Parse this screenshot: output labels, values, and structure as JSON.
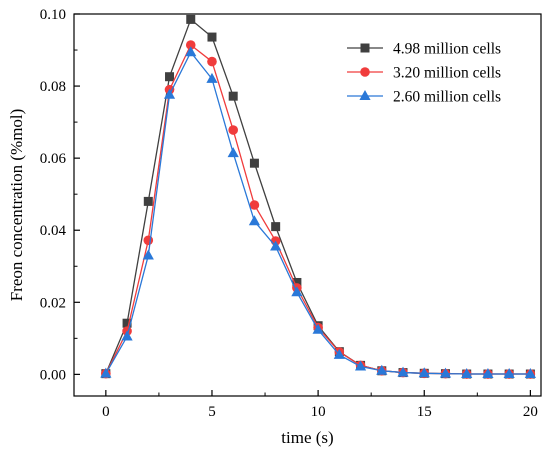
{
  "chart_data": {
    "type": "line",
    "title": "",
    "xlabel": "time (s)",
    "ylabel": "Freon concentration (%mol)",
    "xlim": [
      -1.5,
      20.5
    ],
    "ylim": [
      -0.006,
      0.1
    ],
    "x_ticks": [
      0,
      5,
      10,
      15,
      20
    ],
    "x_tick_labels": [
      "0",
      "5",
      "10",
      "15",
      "20"
    ],
    "y_ticks": [
      0,
      0.02,
      0.04,
      0.06,
      0.08,
      0.1
    ],
    "y_tick_labels": [
      "0.00",
      "0.02",
      "0.04",
      "0.06",
      "0.08",
      "0.10"
    ],
    "grid": false,
    "legend_position": "top-right",
    "x": [
      0,
      1,
      2,
      3,
      4,
      5,
      6,
      7,
      8,
      9,
      10,
      11,
      12,
      13,
      14,
      15,
      16,
      17,
      18,
      19,
      20
    ],
    "series": [
      {
        "name": "4.98 million cells",
        "color": "#404040",
        "marker": "square",
        "values": [
          0.0002,
          0.0142,
          0.048,
          0.0826,
          0.0985,
          0.0936,
          0.0772,
          0.0586,
          0.041,
          0.0255,
          0.0135,
          0.0063,
          0.0025,
          0.001,
          0.0005,
          0.0003,
          0.0002,
          0.0001,
          0.0001,
          0.0001,
          0.0001
        ]
      },
      {
        "name": "3.20 million cells",
        "color": "#f03c3c",
        "marker": "circle",
        "values": [
          0.0002,
          0.012,
          0.0372,
          0.079,
          0.0914,
          0.0868,
          0.0678,
          0.047,
          0.037,
          0.024,
          0.013,
          0.0062,
          0.0025,
          0.001,
          0.0005,
          0.0003,
          0.0002,
          0.0001,
          0.0001,
          0.0001,
          0.0001
        ]
      },
      {
        "name": "2.60 million cells",
        "color": "#2a78d8",
        "marker": "triangle",
        "values": [
          0.0002,
          0.0105,
          0.033,
          0.0776,
          0.0894,
          0.082,
          0.0614,
          0.0425,
          0.0355,
          0.0228,
          0.0124,
          0.0054,
          0.0022,
          0.001,
          0.0005,
          0.0003,
          0.0002,
          0.0001,
          0.0001,
          0.0001,
          0.0001
        ]
      }
    ]
  }
}
